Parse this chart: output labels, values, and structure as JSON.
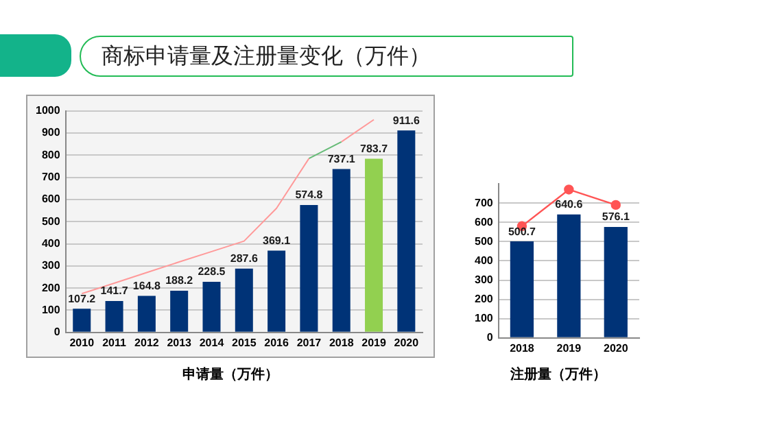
{
  "chart_data": [
    {
      "type": "bar",
      "title": "商标申请量及注册量变化（万件）",
      "xlabel": "申请量（万件）",
      "categories": [
        "2010",
        "2011",
        "2012",
        "2013",
        "2014",
        "2015",
        "2016",
        "2017",
        "2018",
        "2019",
        "2020"
      ],
      "series": [
        {
          "colors": [
            "#003377",
            "#003377",
            "#003377",
            "#003377",
            "#003377",
            "#003377",
            "#003377",
            "#003377",
            "#003377",
            "#92d050",
            "#003377"
          ],
          "values": [
            107.2,
            141.7,
            164.8,
            188.2,
            228.5,
            287.6,
            369.1,
            574.8,
            737.1,
            783.7,
            911.6
          ],
          "value_labels": [
            "107.2",
            "141.7",
            "164.8",
            "188.2",
            "228.5",
            "287.6",
            "369.1",
            "574.8",
            "737.1",
            "783.7",
            "911.6"
          ]
        },
        {
          "type": "line",
          "color": "#ff9999",
          "marker": "none",
          "values": [
            175,
            222,
            270,
            318,
            365,
            412,
            560,
            785,
            null,
            null,
            null
          ]
        },
        {
          "type": "line",
          "color": "#66bb77",
          "marker": "none",
          "values": [
            null,
            null,
            null,
            null,
            null,
            null,
            null,
            785,
            860,
            null,
            null
          ]
        },
        {
          "type": "line",
          "color": "#ff9999",
          "marker": "none",
          "values": [
            null,
            null,
            null,
            null,
            null,
            null,
            null,
            null,
            860,
            960,
            null
          ]
        }
      ],
      "ylim": [
        0,
        1000
      ],
      "yticks": [
        0,
        100,
        200,
        300,
        400,
        500,
        600,
        700,
        800,
        900,
        1000
      ],
      "grid": "y",
      "legend": false
    },
    {
      "type": "bar",
      "xlabel": "注册量（万件）",
      "categories": [
        "2018",
        "2019",
        "2020"
      ],
      "series": [
        {
          "color": "#003377",
          "values": [
            500.7,
            640.6,
            576.1
          ],
          "value_labels": [
            "500.7",
            "640.6",
            "576.1"
          ]
        },
        {
          "type": "line",
          "color": "#ff5555",
          "marker": "circle",
          "values": [
            580,
            770,
            690
          ]
        }
      ],
      "ylim": [
        0,
        800
      ],
      "yticks": [
        0,
        100,
        200,
        300,
        400,
        500,
        600,
        700
      ],
      "grid": "y",
      "legend": false
    }
  ]
}
